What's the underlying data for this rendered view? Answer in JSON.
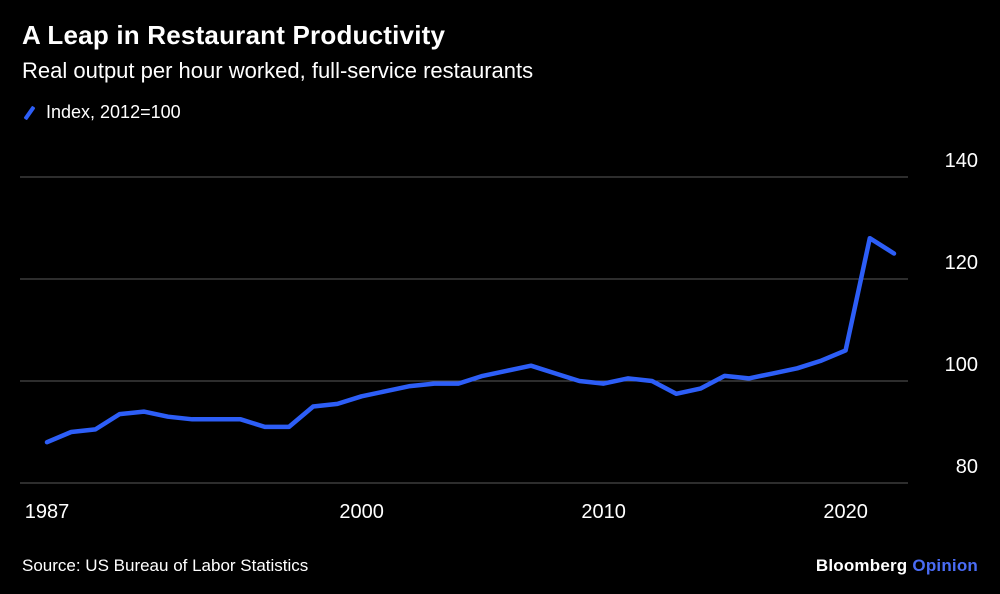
{
  "header": {
    "title": "A Leap in Restaurant Productivity",
    "subtitle": "Real output per hour worked, full-service restaurants"
  },
  "legend": {
    "label": "Index, 2012=100"
  },
  "source": "Source: US Bureau of Labor Statistics",
  "branding": {
    "name": "Bloomberg",
    "unit": "Opinion"
  },
  "colors": {
    "background": "#000000",
    "text": "#ffffff",
    "line": "#2d5ef7",
    "grid": "#5a5a5a",
    "brand_accent": "#4a6cf5"
  },
  "chart_data": {
    "type": "line",
    "title": "A Leap in Restaurant Productivity",
    "subtitle": "Real output per hour worked, full-service restaurants",
    "series_name": "Index, 2012=100",
    "x": [
      1987,
      1988,
      1989,
      1990,
      1991,
      1992,
      1993,
      1994,
      1995,
      1996,
      1997,
      1998,
      1999,
      2000,
      2001,
      2002,
      2003,
      2004,
      2005,
      2006,
      2007,
      2008,
      2009,
      2010,
      2011,
      2012,
      2013,
      2014,
      2015,
      2016,
      2017,
      2018,
      2019,
      2020,
      2021,
      2022
    ],
    "values": [
      88,
      90,
      90.5,
      93.5,
      94,
      93,
      92.5,
      92.5,
      92.5,
      91,
      91,
      95,
      95.5,
      97,
      98,
      99,
      99.5,
      99.5,
      101,
      102,
      103,
      101.5,
      100,
      99.5,
      100.5,
      100,
      97.5,
      98.5,
      101,
      100.5,
      101.5,
      102.5,
      104,
      106,
      128,
      125
    ],
    "yticks": [
      80,
      100,
      120,
      140
    ],
    "xticks": [
      1987,
      2000,
      2010,
      2020
    ],
    "ylim": [
      80,
      140
    ],
    "xlim": [
      1987,
      2022
    ],
    "grid": "horizontal",
    "legend_position": "top-left",
    "source": "US Bureau of Labor Statistics"
  }
}
